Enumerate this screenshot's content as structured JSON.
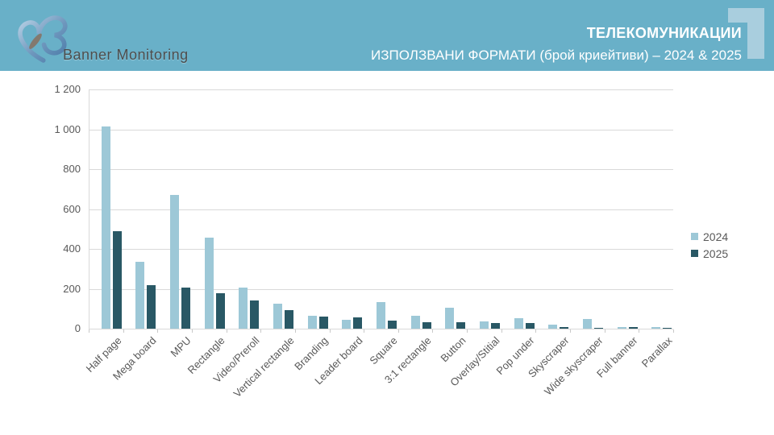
{
  "header": {
    "brand": "Banner Monitoring",
    "title": "ТЕЛЕКОМУНИКАЦИИ",
    "subtitle": "ИЗПОЛЗВАНИ ФОРМАТИ (брой криейтиви) – 2024 & 2025"
  },
  "colors": {
    "header_bg": "#69b0c8",
    "corner_accent": "#a9cede",
    "series_2024": "#9dc8d7",
    "series_2025": "#295865",
    "grid": "#d9d9d9",
    "axis_text": "#595959",
    "title_text": "#ffffff"
  },
  "chart_data": {
    "type": "bar",
    "title": "ИЗПОЛЗВАНИ ФОРМАТИ (брой криейтиви) – 2024 & 2025",
    "categories": [
      "Half page",
      "Mega board",
      "MPU",
      "Rectangle",
      "Video/Preroll",
      "Vertical rectangle",
      "Branding",
      "Leader board",
      "Square",
      "3:1 rectangle",
      "Button",
      "Overlay/Stitial",
      "Pop under",
      "Skyscraper",
      "Wide skyscraper",
      "Full banner",
      "Parallax"
    ],
    "series": [
      {
        "name": "2024",
        "color": "#9dc8d7",
        "values": [
          1015,
          335,
          670,
          455,
          207,
          126,
          66,
          44,
          134,
          64,
          104,
          35,
          52,
          20,
          48,
          8,
          7
        ]
      },
      {
        "name": "2025",
        "color": "#295865",
        "values": [
          490,
          218,
          207,
          177,
          142,
          93,
          62,
          57,
          41,
          32,
          31,
          28,
          28,
          8,
          5,
          10,
          3
        ]
      }
    ],
    "xlabel": "",
    "ylabel": "",
    "ylim": [
      0,
      1200
    ],
    "ytick_step": 200,
    "ytick_labels": [
      "0",
      "200",
      "400",
      "600",
      "800",
      "1 000",
      "1 200"
    ],
    "grid": true,
    "legend_position": "right"
  }
}
